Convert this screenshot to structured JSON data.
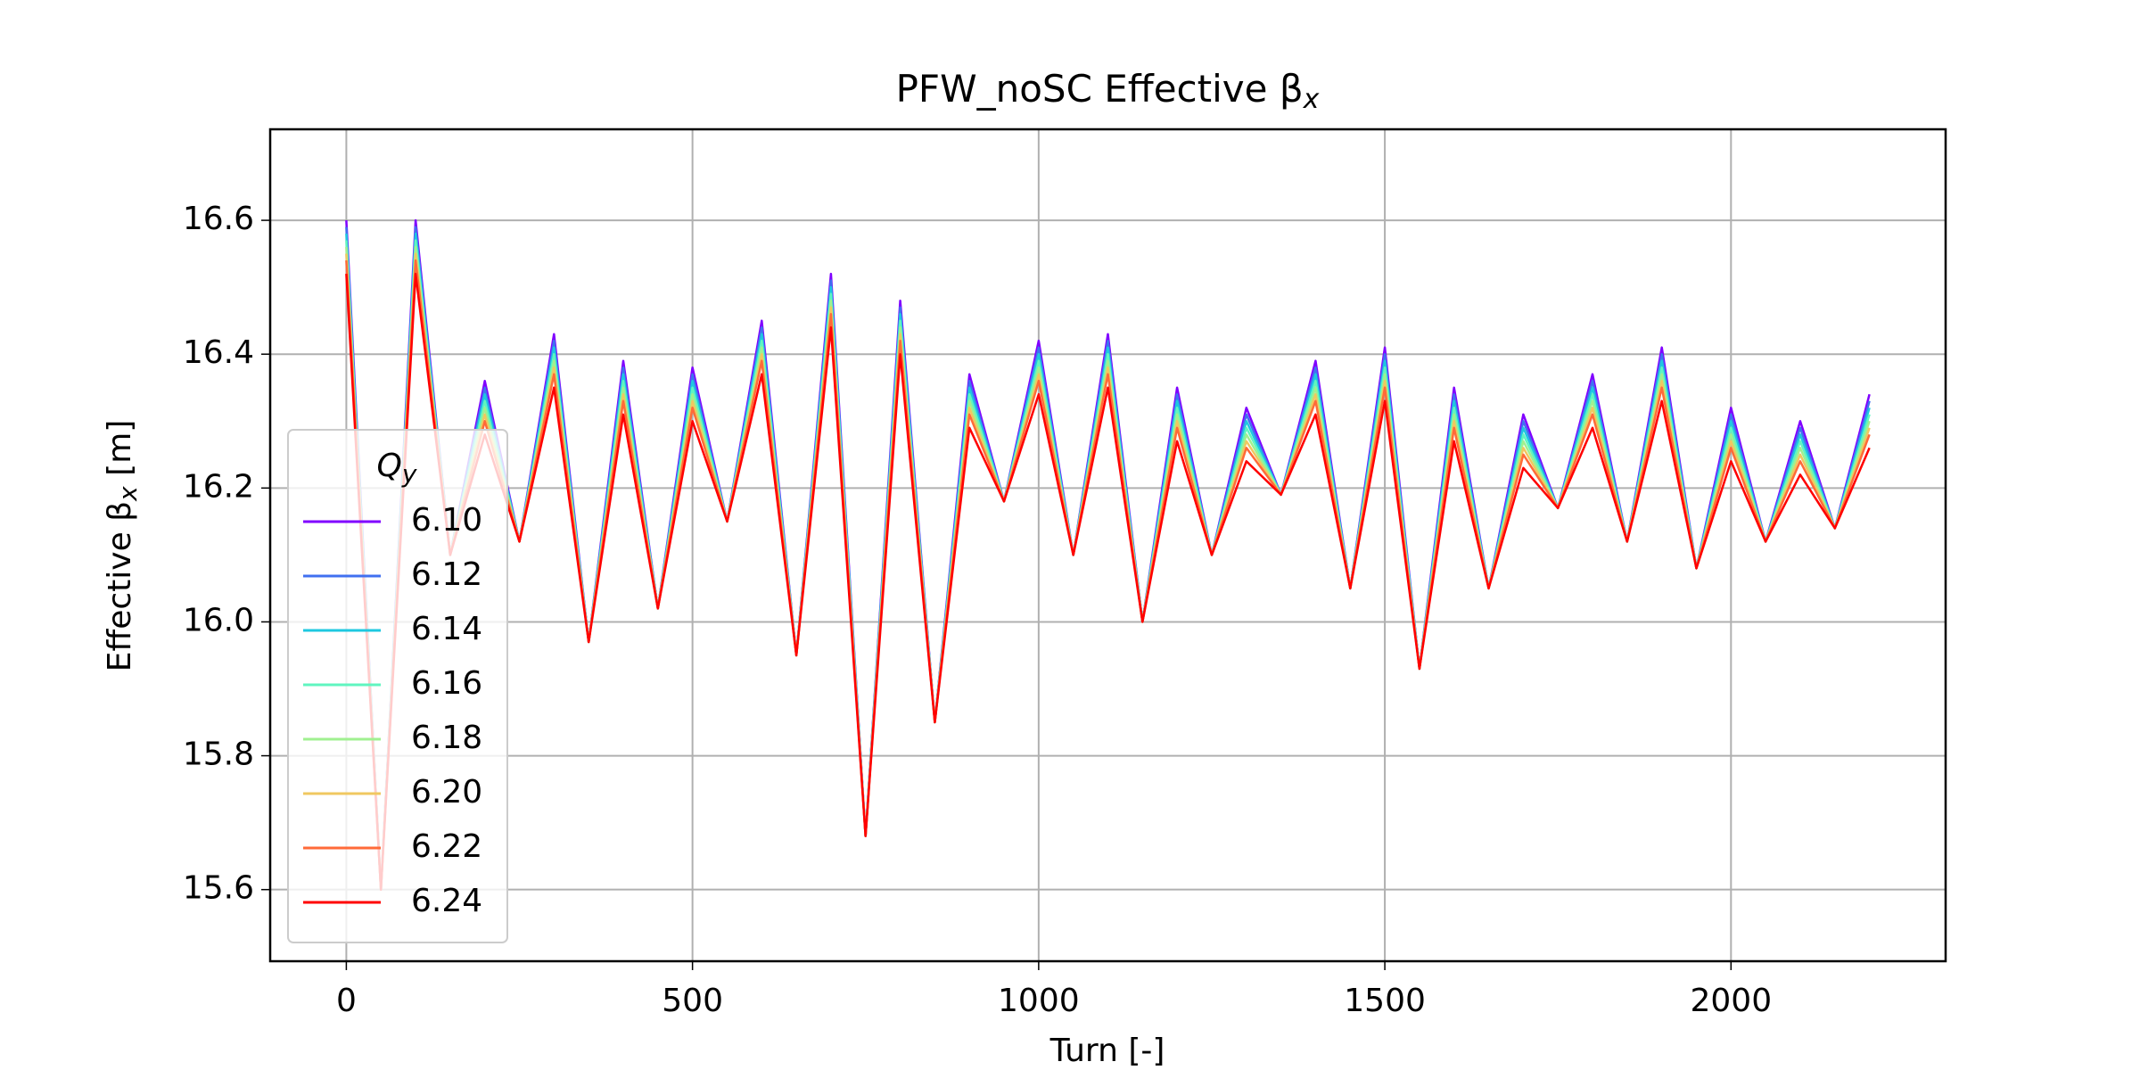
{
  "chart_data": {
    "type": "line",
    "title": {
      "main": "PFW_noSC Effective β",
      "subscript": "x"
    },
    "xlabel": "Turn [-]",
    "ylabel": {
      "main": "Effective β",
      "subscript": "x",
      "suffix": " [m]"
    },
    "legend_title": {
      "main": "Q",
      "subscript": "y"
    },
    "legend": "lower left",
    "grid": true,
    "xlim": [
      -110,
      2310
    ],
    "xticks": [
      0,
      500,
      1000,
      1500,
      2000
    ],
    "ylim": [
      15.493,
      16.736
    ],
    "yticks": [
      15.6,
      15.8,
      {
        "value": 16.0,
        "label": "16.0"
      },
      16.2,
      16.4,
      16.6
    ],
    "x": [
      0,
      50,
      100,
      150,
      200,
      250,
      300,
      350,
      400,
      450,
      500,
      550,
      600,
      650,
      700,
      750,
      800,
      850,
      900,
      950,
      1000,
      1050,
      1100,
      1150,
      1200,
      1250,
      1300,
      1350,
      1400,
      1450,
      1500,
      1550,
      1600,
      1650,
      1700,
      1750,
      1800,
      1850,
      1900,
      1950,
      2000,
      2050,
      2100,
      2150,
      2200
    ],
    "series": [
      {
        "name": "6.10",
        "color": "#8000ff",
        "values": [
          16.6,
          15.6,
          16.6,
          16.1,
          16.36,
          16.12,
          16.43,
          15.97,
          16.39,
          16.02,
          16.38,
          16.15,
          16.45,
          15.95,
          16.52,
          15.68,
          16.48,
          15.85,
          16.37,
          16.18,
          16.42,
          16.1,
          16.43,
          16.0,
          16.35,
          16.1,
          16.32,
          16.19,
          16.39,
          16.05,
          16.41,
          15.93,
          16.35,
          16.05,
          16.31,
          16.17,
          16.37,
          16.12,
          16.41,
          16.08,
          16.32,
          16.12,
          16.3,
          16.14,
          16.34
        ]
      },
      {
        "name": "6.12",
        "color": "#4070f0",
        "values": [
          16.59,
          15.6,
          16.59,
          16.1,
          16.35,
          16.12,
          16.42,
          15.97,
          16.38,
          16.02,
          16.37,
          16.15,
          16.44,
          15.95,
          16.51,
          15.68,
          16.47,
          15.85,
          16.36,
          16.18,
          16.41,
          16.1,
          16.42,
          16.0,
          16.34,
          16.1,
          16.31,
          16.19,
          16.38,
          16.05,
          16.4,
          15.93,
          16.34,
          16.05,
          16.3,
          16.17,
          16.36,
          16.12,
          16.4,
          16.08,
          16.31,
          16.12,
          16.29,
          16.14,
          16.33
        ]
      },
      {
        "name": "6.14",
        "color": "#1ec8e0",
        "values": [
          16.58,
          15.6,
          16.58,
          16.1,
          16.34,
          16.12,
          16.41,
          15.97,
          16.37,
          16.02,
          16.36,
          16.15,
          16.43,
          15.95,
          16.5,
          15.68,
          16.46,
          15.85,
          16.35,
          16.18,
          16.4,
          16.1,
          16.41,
          16.0,
          16.33,
          16.1,
          16.3,
          16.19,
          16.37,
          16.05,
          16.39,
          15.93,
          16.33,
          16.05,
          16.29,
          16.17,
          16.35,
          16.12,
          16.39,
          16.08,
          16.3,
          16.12,
          16.28,
          16.14,
          16.32
        ]
      },
      {
        "name": "6.16",
        "color": "#60f5c0",
        "values": [
          16.57,
          15.6,
          16.57,
          16.1,
          16.33,
          16.12,
          16.4,
          15.97,
          16.36,
          16.02,
          16.35,
          16.15,
          16.42,
          15.95,
          16.49,
          15.68,
          16.45,
          15.85,
          16.34,
          16.18,
          16.39,
          16.1,
          16.4,
          16.0,
          16.32,
          16.1,
          16.29,
          16.19,
          16.36,
          16.05,
          16.38,
          15.93,
          16.32,
          16.05,
          16.28,
          16.17,
          16.34,
          16.12,
          16.38,
          16.08,
          16.29,
          16.12,
          16.27,
          16.14,
          16.31
        ]
      },
      {
        "name": "6.18",
        "color": "#a0f090",
        "values": [
          16.56,
          15.6,
          16.56,
          16.1,
          16.32,
          16.12,
          16.39,
          15.97,
          16.35,
          16.02,
          16.34,
          16.15,
          16.41,
          15.95,
          16.48,
          15.68,
          16.44,
          15.85,
          16.33,
          16.18,
          16.38,
          16.1,
          16.39,
          16.0,
          16.31,
          16.1,
          16.28,
          16.19,
          16.35,
          16.05,
          16.37,
          15.93,
          16.31,
          16.05,
          16.27,
          16.17,
          16.33,
          16.12,
          16.37,
          16.08,
          16.28,
          16.12,
          16.26,
          16.14,
          16.3
        ]
      },
      {
        "name": "6.20",
        "color": "#f0c860",
        "values": [
          16.55,
          15.6,
          16.55,
          16.1,
          16.31,
          16.12,
          16.38,
          15.97,
          16.34,
          16.02,
          16.33,
          16.15,
          16.4,
          15.95,
          16.47,
          15.68,
          16.43,
          15.85,
          16.32,
          16.18,
          16.37,
          16.1,
          16.38,
          16.0,
          16.3,
          16.1,
          16.27,
          16.19,
          16.34,
          16.05,
          16.36,
          15.93,
          16.3,
          16.05,
          16.26,
          16.17,
          16.32,
          16.12,
          16.36,
          16.08,
          16.27,
          16.12,
          16.25,
          16.14,
          16.29
        ]
      },
      {
        "name": "6.22",
        "color": "#ff6a38",
        "values": [
          16.54,
          15.6,
          16.54,
          16.1,
          16.3,
          16.12,
          16.37,
          15.97,
          16.33,
          16.02,
          16.32,
          16.15,
          16.39,
          15.95,
          16.46,
          15.68,
          16.42,
          15.85,
          16.31,
          16.18,
          16.36,
          16.1,
          16.37,
          16.0,
          16.29,
          16.1,
          16.26,
          16.19,
          16.33,
          16.05,
          16.35,
          15.93,
          16.29,
          16.05,
          16.25,
          16.17,
          16.31,
          16.12,
          16.35,
          16.08,
          16.26,
          16.12,
          16.24,
          16.14,
          16.28
        ]
      },
      {
        "name": "6.24",
        "color": "#ff0000",
        "values": [
          16.52,
          15.6,
          16.52,
          16.1,
          16.28,
          16.12,
          16.35,
          15.97,
          16.31,
          16.02,
          16.3,
          16.15,
          16.37,
          15.95,
          16.44,
          15.68,
          16.4,
          15.85,
          16.29,
          16.18,
          16.34,
          16.1,
          16.35,
          16.0,
          16.27,
          16.1,
          16.24,
          16.19,
          16.31,
          16.05,
          16.33,
          15.93,
          16.27,
          16.05,
          16.23,
          16.17,
          16.29,
          16.12,
          16.33,
          16.08,
          16.24,
          16.12,
          16.22,
          16.14,
          16.26
        ]
      }
    ]
  }
}
